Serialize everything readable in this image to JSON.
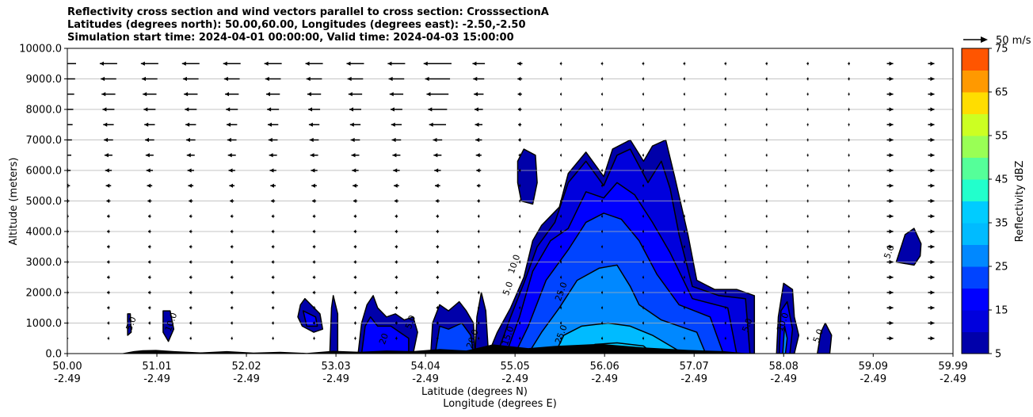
{
  "titles": [
    "Reflectivity cross section and wind vectors parallel to cross section: CrosssectionA",
    "Latitudes (degrees north): 50.00,60.00, Longitudes (degrees east): -2.50,-2.50",
    "Simulation start time: 2024-04-01 00:00:00, Valid time: 2024-04-03 15:00:00"
  ],
  "chart_data": {
    "type": "contour",
    "title": "Reflectivity cross section and wind vectors parallel to cross section: CrosssectionA",
    "xlabel": "Latitude (degrees N)",
    "xlabel2": "Longitude (degrees E)",
    "ylabel": "Altitude (meters)",
    "colorbar_label": "Reflectivity dBZ",
    "xlim": [
      50.0,
      59.99
    ],
    "ylim": [
      0,
      10000
    ],
    "x_ticks": [
      {
        "lat": "50.00",
        "lon": "-2.49",
        "v": 50.0
      },
      {
        "lat": "51.01",
        "lon": "-2.49",
        "v": 51.01
      },
      {
        "lat": "52.02",
        "lon": "-2.49",
        "v": 52.02
      },
      {
        "lat": "53.03",
        "lon": "-2.49",
        "v": 53.03
      },
      {
        "lat": "54.04",
        "lon": "-2.49",
        "v": 54.04
      },
      {
        "lat": "55.05",
        "lon": "-2.49",
        "v": 55.05
      },
      {
        "lat": "56.06",
        "lon": "-2.49",
        "v": 56.06
      },
      {
        "lat": "57.07",
        "lon": "-2.49",
        "v": 57.07
      },
      {
        "lat": "58.08",
        "lon": "-2.49",
        "v": 58.08
      },
      {
        "lat": "59.09",
        "lon": "-2.49",
        "v": 59.09
      },
      {
        "lat": "59.99",
        "lon": "-2.49",
        "v": 59.99
      }
    ],
    "y_ticks": [
      {
        "label": "0.0",
        "v": 0
      },
      {
        "label": "1000.0",
        "v": 1000
      },
      {
        "label": "2000.0",
        "v": 2000
      },
      {
        "label": "3000.0",
        "v": 3000
      },
      {
        "label": "4000.0",
        "v": 4000
      },
      {
        "label": "5000.0",
        "v": 5000
      },
      {
        "label": "6000.0",
        "v": 6000
      },
      {
        "label": "7000.0",
        "v": 7000
      },
      {
        "label": "8000.0",
        "v": 8000
      },
      {
        "label": "9000.0",
        "v": 9000
      },
      {
        "label": "10000.0",
        "v": 10000
      }
    ],
    "grid": "horizontal",
    "colorbar": {
      "levels": [
        5,
        10,
        15,
        20,
        25,
        30,
        35,
        40,
        45,
        50,
        55,
        60,
        65,
        70,
        75
      ],
      "tick_labels": [
        "5",
        "15",
        "25",
        "35",
        "45",
        "55",
        "65",
        "75"
      ],
      "tick_values": [
        5,
        15,
        25,
        35,
        45,
        55,
        65,
        75
      ],
      "colors": [
        "#0000aa",
        "#0000dd",
        "#0000ff",
        "#0044ff",
        "#0088ff",
        "#00bbff",
        "#00ccff",
        "#22ffcc",
        "#55ff99",
        "#99ff55",
        "#ccff22",
        "#ffdd00",
        "#ff9900",
        "#ff5500",
        "#ff1100",
        "#aa0000"
      ]
    },
    "reference_vector": {
      "label": "50 m/s",
      "speed": 50
    },
    "contour_labels": [
      {
        "text": "25.0",
        "x": 55.6,
        "y": 2000
      },
      {
        "text": "25.0",
        "x": 55.6,
        "y": 600
      },
      {
        "text": "15.0",
        "x": 55.0,
        "y": 550
      },
      {
        "text": "20.0",
        "x": 54.6,
        "y": 450
      },
      {
        "text": "20",
        "x": 53.6,
        "y": 450
      },
      {
        "text": "5.0",
        "x": 53.9,
        "y": 1000
      },
      {
        "text": "10.0",
        "x": 55.07,
        "y": 2900
      },
      {
        "text": "5.0",
        "x": 55.0,
        "y": 2100
      },
      {
        "text": "5.0",
        "x": 59.3,
        "y": 3300
      },
      {
        "text": "5.0",
        "x": 58.5,
        "y": 550
      },
      {
        "text": "5.0",
        "x": 57.7,
        "y": 900
      },
      {
        "text": "10.0",
        "x": 51.2,
        "y": 1000
      },
      {
        "text": "5.0",
        "x": 50.75,
        "y": 950
      },
      {
        "text": "10.0",
        "x": 58.1,
        "y": 1000
      }
    ],
    "regions": [
      {
        "level": 5,
        "color": "#0000aa",
        "points": [
          [
            55.08,
            6300
          ],
          [
            55.15,
            6700
          ],
          [
            55.28,
            6500
          ],
          [
            55.3,
            5600
          ],
          [
            55.25,
            4900
          ],
          [
            55.12,
            5000
          ],
          [
            55.08,
            5600
          ]
        ]
      },
      {
        "level": 5,
        "color": "#0000aa",
        "points": [
          [
            54.75,
            0
          ],
          [
            54.85,
            700
          ],
          [
            55.0,
            1500
          ],
          [
            55.15,
            2500
          ],
          [
            55.25,
            3700
          ],
          [
            55.35,
            4200
          ],
          [
            55.55,
            4800
          ],
          [
            55.65,
            5900
          ],
          [
            55.85,
            6600
          ],
          [
            56.05,
            5800
          ],
          [
            56.15,
            6700
          ],
          [
            56.35,
            7000
          ],
          [
            56.5,
            6300
          ],
          [
            56.6,
            6800
          ],
          [
            56.75,
            7000
          ],
          [
            56.85,
            5800
          ],
          [
            57.0,
            3900
          ],
          [
            57.1,
            2400
          ],
          [
            57.3,
            2100
          ],
          [
            57.55,
            2100
          ],
          [
            57.75,
            1900
          ],
          [
            57.75,
            0
          ]
        ]
      },
      {
        "level": 10,
        "color": "#0000dd",
        "points": [
          [
            54.85,
            0
          ],
          [
            55.0,
            1200
          ],
          [
            55.15,
            2300
          ],
          [
            55.3,
            3500
          ],
          [
            55.5,
            4300
          ],
          [
            55.65,
            5600
          ],
          [
            55.85,
            6300
          ],
          [
            56.05,
            5500
          ],
          [
            56.2,
            6500
          ],
          [
            56.35,
            6700
          ],
          [
            56.55,
            5600
          ],
          [
            56.7,
            6300
          ],
          [
            56.8,
            5400
          ],
          [
            56.9,
            3900
          ],
          [
            57.05,
            2200
          ],
          [
            57.35,
            1900
          ],
          [
            57.65,
            1800
          ],
          [
            57.7,
            0
          ]
        ]
      },
      {
        "level": 15,
        "color": "#0000ff",
        "points": [
          [
            54.95,
            0
          ],
          [
            55.1,
            1200
          ],
          [
            55.25,
            2700
          ],
          [
            55.45,
            3700
          ],
          [
            55.65,
            4100
          ],
          [
            55.85,
            5300
          ],
          [
            56.05,
            5100
          ],
          [
            56.2,
            5600
          ],
          [
            56.4,
            5200
          ],
          [
            56.6,
            4300
          ],
          [
            56.8,
            3300
          ],
          [
            57.05,
            1800
          ],
          [
            57.45,
            1500
          ],
          [
            57.55,
            0
          ]
        ]
      },
      {
        "level": 20,
        "color": "#0044ff",
        "points": [
          [
            55.05,
            0
          ],
          [
            55.2,
            900
          ],
          [
            55.4,
            2400
          ],
          [
            55.65,
            3400
          ],
          [
            55.85,
            4300
          ],
          [
            56.05,
            4600
          ],
          [
            56.25,
            4400
          ],
          [
            56.45,
            3700
          ],
          [
            56.65,
            2600
          ],
          [
            56.9,
            1600
          ],
          [
            57.25,
            1200
          ],
          [
            57.4,
            0
          ]
        ]
      },
      {
        "level": 25,
        "color": "#0088ff",
        "points": [
          [
            55.2,
            0
          ],
          [
            55.35,
            700
          ],
          [
            55.55,
            1500
          ],
          [
            55.75,
            2400
          ],
          [
            56.0,
            2800
          ],
          [
            56.2,
            2900
          ],
          [
            56.35,
            2200
          ],
          [
            56.45,
            1600
          ],
          [
            56.7,
            1100
          ],
          [
            57.1,
            700
          ],
          [
            57.2,
            0
          ]
        ]
      },
      {
        "level": 30,
        "color": "#00bbff",
        "points": [
          [
            55.5,
            0
          ],
          [
            55.6,
            600
          ],
          [
            55.8,
            900
          ],
          [
            56.1,
            1000
          ],
          [
            56.35,
            900
          ],
          [
            56.6,
            600
          ],
          [
            56.95,
            0
          ]
        ]
      },
      {
        "level": 35,
        "color": "#00ccff",
        "points": [
          [
            55.85,
            0
          ],
          [
            55.95,
            300
          ],
          [
            56.2,
            350
          ],
          [
            56.5,
            250
          ],
          [
            56.6,
            0
          ]
        ]
      },
      {
        "level": 5,
        "color": "#0000aa",
        "points": [
          [
            53.28,
            0
          ],
          [
            53.32,
            1000
          ],
          [
            53.38,
            1600
          ],
          [
            53.45,
            1900
          ],
          [
            53.5,
            1500
          ],
          [
            53.6,
            1200
          ],
          [
            53.7,
            1300
          ],
          [
            53.8,
            1100
          ],
          [
            53.9,
            1200
          ],
          [
            53.95,
            700
          ],
          [
            53.9,
            0
          ]
        ]
      },
      {
        "level": 10,
        "color": "#0000ff",
        "points": [
          [
            53.32,
            0
          ],
          [
            53.36,
            900
          ],
          [
            53.42,
            1200
          ],
          [
            53.5,
            900
          ],
          [
            53.65,
            900
          ],
          [
            53.75,
            700
          ],
          [
            53.85,
            500
          ],
          [
            53.85,
            0
          ]
        ]
      },
      {
        "level": 5,
        "color": "#0000aa",
        "points": [
          [
            54.1,
            0
          ],
          [
            54.12,
            1000
          ],
          [
            54.2,
            1600
          ],
          [
            54.3,
            1400
          ],
          [
            54.42,
            1700
          ],
          [
            54.5,
            1400
          ],
          [
            54.58,
            1000
          ],
          [
            54.6,
            0
          ]
        ]
      },
      {
        "level": 10,
        "color": "#0044ff",
        "points": [
          [
            54.15,
            0
          ],
          [
            54.2,
            900
          ],
          [
            54.3,
            800
          ],
          [
            54.45,
            1000
          ],
          [
            54.55,
            600
          ],
          [
            54.58,
            0
          ]
        ]
      },
      {
        "level": 5,
        "color": "#0000aa",
        "points": [
          [
            54.6,
            0
          ],
          [
            54.62,
            1200
          ],
          [
            54.67,
            2000
          ],
          [
            54.72,
            1400
          ],
          [
            54.75,
            0
          ]
        ]
      },
      {
        "level": 5,
        "color": "#0000aa",
        "points": [
          [
            52.63,
            1600
          ],
          [
            52.68,
            1800
          ],
          [
            52.85,
            1300
          ],
          [
            52.88,
            800
          ],
          [
            52.78,
            700
          ],
          [
            52.65,
            900
          ],
          [
            52.6,
            1200
          ]
        ]
      },
      {
        "level": 10,
        "color": "#0000ff",
        "points": [
          [
            52.66,
            1400
          ],
          [
            52.8,
            1200
          ],
          [
            52.82,
            900
          ],
          [
            52.7,
            900
          ]
        ]
      },
      {
        "level": 5,
        "color": "#0000aa",
        "points": [
          [
            52.96,
            0
          ],
          [
            52.98,
            1500
          ],
          [
            53.0,
            1900
          ],
          [
            53.05,
            1300
          ],
          [
            53.05,
            0
          ]
        ]
      },
      {
        "level": 5,
        "color": "#0000aa",
        "points": [
          [
            51.08,
            1400
          ],
          [
            51.16,
            1400
          ],
          [
            51.2,
            800
          ],
          [
            51.14,
            400
          ],
          [
            51.08,
            700
          ]
        ]
      },
      {
        "level": 5,
        "color": "#0000aa",
        "points": [
          [
            50.68,
            1300
          ],
          [
            50.71,
            1300
          ],
          [
            50.72,
            700
          ],
          [
            50.68,
            600
          ]
        ]
      },
      {
        "level": 5,
        "color": "#0000aa",
        "points": [
          [
            59.35,
            3000
          ],
          [
            59.45,
            3900
          ],
          [
            59.55,
            4100
          ],
          [
            59.63,
            3600
          ],
          [
            59.62,
            3200
          ],
          [
            59.55,
            2900
          ]
        ]
      },
      {
        "level": 5,
        "color": "#0000aa",
        "points": [
          [
            58.0,
            0
          ],
          [
            58.02,
            1200
          ],
          [
            58.08,
            2300
          ],
          [
            58.18,
            2100
          ],
          [
            58.2,
            1200
          ],
          [
            58.25,
            600
          ],
          [
            58.2,
            0
          ]
        ]
      },
      {
        "level": 10,
        "color": "#0000ff",
        "points": [
          [
            58.03,
            0
          ],
          [
            58.05,
            1400
          ],
          [
            58.12,
            1700
          ],
          [
            58.18,
            800
          ],
          [
            58.15,
            0
          ]
        ]
      },
      {
        "level": 15,
        "color": "#0088ff",
        "points": [
          [
            58.07,
            0
          ],
          [
            58.09,
            900
          ],
          [
            58.12,
            500
          ],
          [
            58.1,
            0
          ]
        ]
      },
      {
        "level": 5,
        "color": "#0000aa",
        "points": [
          [
            58.46,
            0
          ],
          [
            58.5,
            700
          ],
          [
            58.55,
            1000
          ],
          [
            58.62,
            600
          ],
          [
            58.6,
            0
          ]
        ]
      }
    ],
    "terrain": [
      [
        50.0,
        0
      ],
      [
        50.6,
        0
      ],
      [
        50.75,
        80
      ],
      [
        50.85,
        110
      ],
      [
        51.0,
        120
      ],
      [
        51.2,
        80
      ],
      [
        51.5,
        40
      ],
      [
        51.8,
        80
      ],
      [
        52.1,
        30
      ],
      [
        52.4,
        60
      ],
      [
        52.7,
        20
      ],
      [
        53.0,
        90
      ],
      [
        53.3,
        60
      ],
      [
        53.6,
        100
      ],
      [
        53.9,
        80
      ],
      [
        54.2,
        150
      ],
      [
        54.5,
        100
      ],
      [
        54.8,
        300
      ],
      [
        55.2,
        180
      ],
      [
        55.5,
        250
      ],
      [
        56.0,
        320
      ],
      [
        56.5,
        200
      ],
      [
        57.0,
        120
      ],
      [
        57.4,
        80
      ],
      [
        57.7,
        0
      ],
      [
        59.99,
        0
      ]
    ],
    "wind_grid": {
      "x_start": 50.0,
      "x_step": 0.464,
      "x_count": 22,
      "heights": [
        500,
        1000,
        1500,
        2000,
        2500,
        3000,
        3500,
        4000,
        4500,
        5000,
        5500,
        6000,
        6500,
        7000,
        7500,
        8000,
        8500,
        9000,
        9500
      ]
    }
  }
}
